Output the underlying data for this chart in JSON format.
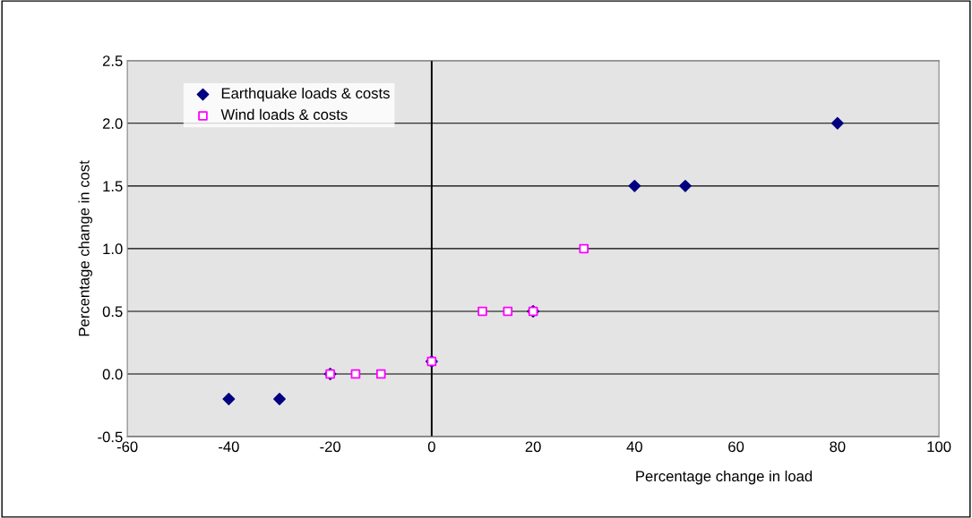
{
  "chart_data": {
    "type": "scatter",
    "xlabel": "Percentage change in load",
    "ylabel": "Percentage change in cost",
    "series": [
      {
        "name": "Earthquake loads & costs",
        "color": "#000080",
        "marker": "diamond",
        "x": [
          -40,
          -30,
          -20,
          0,
          20,
          40,
          50,
          80
        ],
        "values": [
          -0.2,
          -0.2,
          0,
          0.1,
          0.5,
          1.5,
          1.5,
          2.0
        ]
      },
      {
        "name": "Wind loads & costs",
        "color": "#ff00ff",
        "marker": "square",
        "x": [
          -20,
          -15,
          -10,
          0,
          10,
          15,
          20,
          30
        ],
        "values": [
          0,
          0,
          0,
          0.1,
          0.5,
          0.5,
          0.5,
          1.0
        ]
      }
    ],
    "xlim": [
      -60,
      100
    ],
    "xticks": [
      -60,
      -40,
      -20,
      0,
      20,
      40,
      60,
      80,
      100
    ],
    "ylim": [
      -0.5,
      2.5
    ],
    "yticks": [
      {
        "value": -0.5,
        "label": "-0.5"
      },
      {
        "value": 0,
        "label": "0.0"
      },
      {
        "value": 0.5,
        "label": "0.5"
      },
      {
        "value": 1.0,
        "label": "1.0"
      },
      {
        "value": 1.5,
        "label": "1.5"
      },
      {
        "value": 2.0,
        "label": "2.0"
      },
      {
        "value": 2.5,
        "label": "2.5"
      }
    ],
    "ref_lines": [
      {
        "axis": "x",
        "value": 0,
        "color": "#000000"
      }
    ],
    "grid": "y",
    "legend": "top left"
  }
}
